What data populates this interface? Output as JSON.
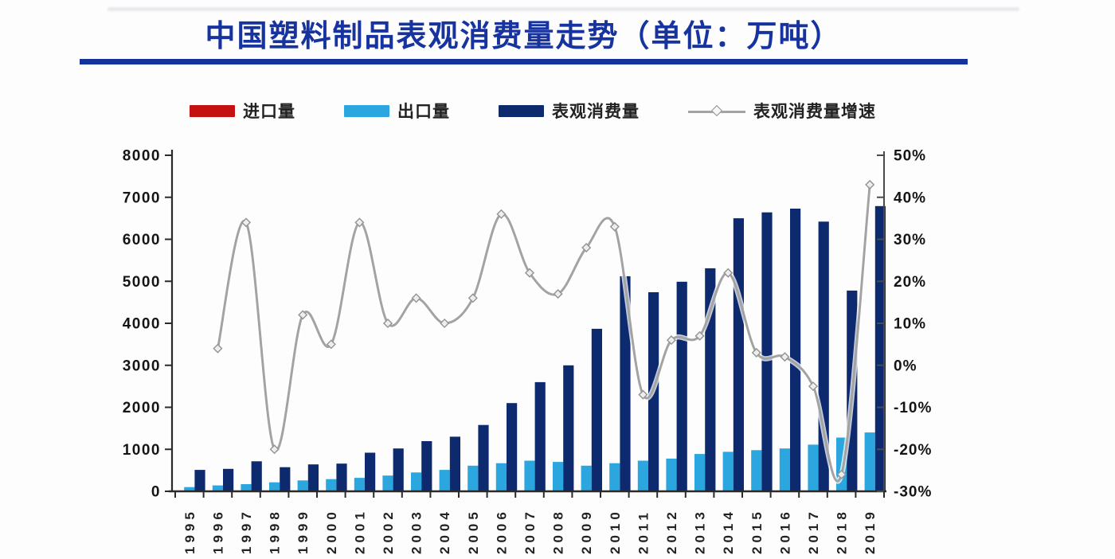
{
  "title": "中国塑料制品表观消费量走势（单位：万吨）",
  "legend": {
    "items": [
      {
        "label": "进口量",
        "swatch": "bar",
        "color": "#c41212"
      },
      {
        "label": "出口量",
        "swatch": "bar",
        "color": "#2ca6df"
      },
      {
        "label": "表观消费量",
        "swatch": "bar",
        "color": "#0e2a6e"
      },
      {
        "label": "表观消费量增速",
        "swatch": "line-marker",
        "color": "#a3a3a3"
      }
    ]
  },
  "chart_data": {
    "type": "bar",
    "subtype": "combo-bar-line-dual-axis",
    "title": "中国塑料制品表观消费量走势（单位：万吨）",
    "grid": false,
    "legend_position": "top",
    "categories": [
      "1995",
      "1996",
      "1997",
      "1998",
      "1999",
      "2000",
      "2001",
      "2002",
      "2003",
      "2004",
      "2005",
      "2006",
      "2007",
      "2008",
      "2009",
      "2010",
      "2011",
      "2012",
      "2013",
      "2014",
      "2015",
      "2016",
      "2017",
      "2018",
      "2019"
    ],
    "series": [
      {
        "key": "imports",
        "name": "进口量",
        "type": "bar",
        "axis": "left",
        "color": "#c41212",
        "values": [],
        "note": "import bars are too small to be visibly rendered at the chart scale"
      },
      {
        "key": "exports",
        "name": "出口量",
        "type": "bar",
        "axis": "left",
        "color": "#2ca6df",
        "values": [
          100,
          140,
          170,
          215,
          260,
          290,
          320,
          375,
          450,
          510,
          610,
          670,
          730,
          700,
          610,
          670,
          730,
          780,
          890,
          940,
          980,
          1020,
          1110,
          1280,
          1400
        ]
      },
      {
        "key": "consumption",
        "name": "表观消费量",
        "type": "bar",
        "axis": "left",
        "color": "#0e2a6e",
        "values": [
          510,
          535,
          715,
          575,
          640,
          660,
          920,
          1020,
          1195,
          1300,
          1580,
          2100,
          2600,
          3000,
          3870,
          5120,
          4740,
          4990,
          5310,
          6500,
          6640,
          6730,
          6420,
          4780,
          6790
        ]
      },
      {
        "key": "growth",
        "name": "表观消费量增速",
        "type": "line",
        "axis": "right",
        "unit": "%",
        "color": "#a3a3a3",
        "x_start": "1996",
        "values": [
          4,
          34,
          -20,
          12,
          5,
          34,
          10,
          16,
          10,
          16,
          36,
          22,
          17,
          28,
          33,
          -7,
          6,
          7,
          22,
          3,
          2,
          -5,
          -26,
          43
        ]
      }
    ],
    "left_axis": {
      "min": 0,
      "max": 8000,
      "step": 1000,
      "labels": [
        "0",
        "1000",
        "2000",
        "3000",
        "4000",
        "5000",
        "6000",
        "7000",
        "8000"
      ]
    },
    "right_axis": {
      "min": -30,
      "max": 50,
      "step": 10,
      "labels": [
        "-30%",
        "-20%",
        "-10%",
        "0%",
        "10%",
        "20%",
        "30%",
        "40%",
        "50%"
      ]
    },
    "values_are_estimates": true
  }
}
